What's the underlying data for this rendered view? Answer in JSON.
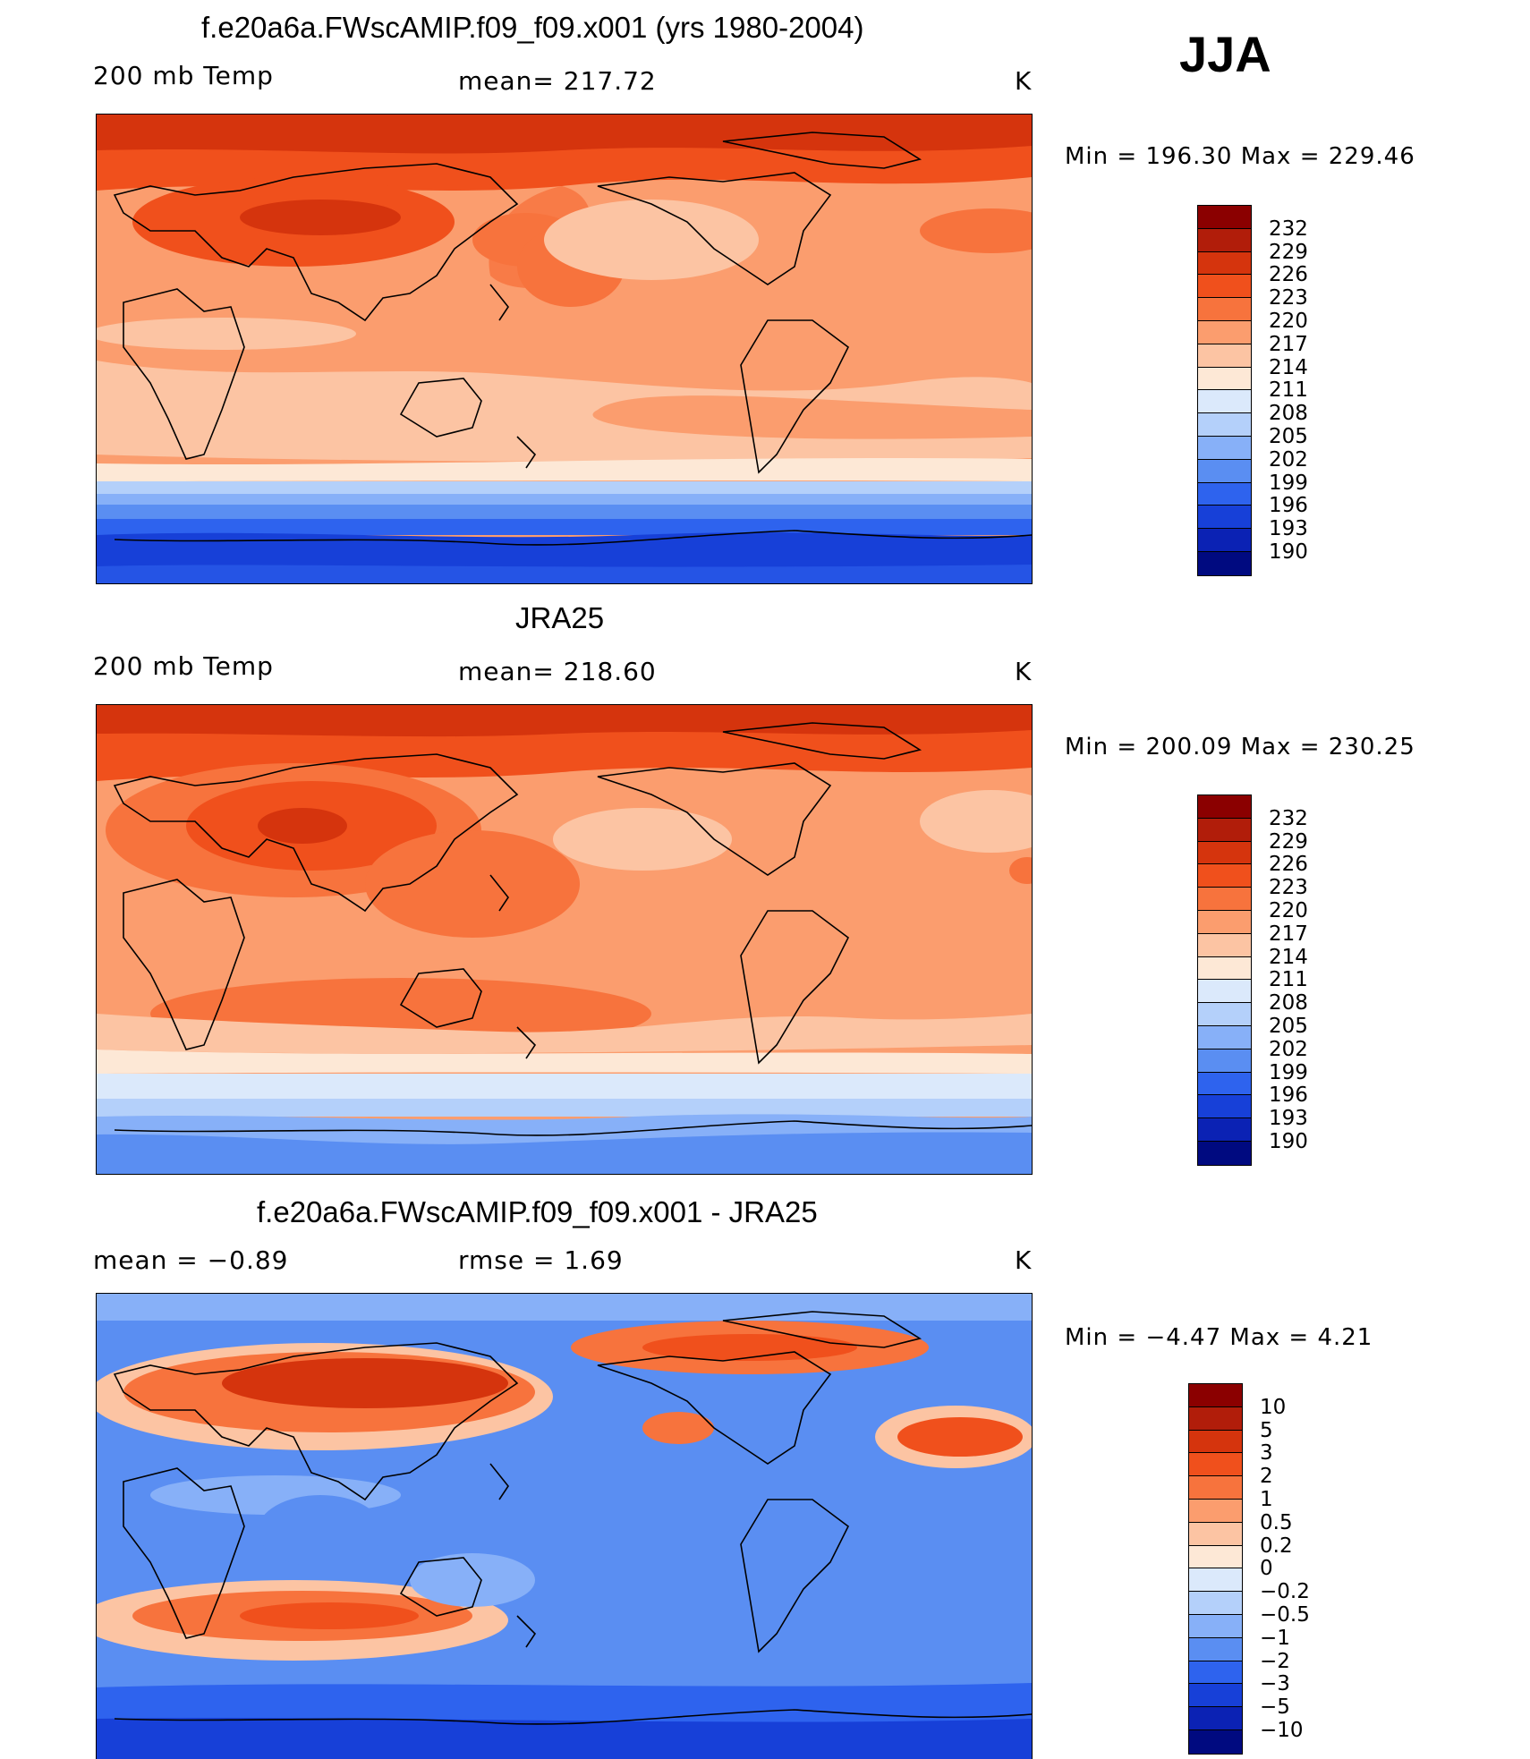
{
  "season": "JJA",
  "panels": [
    {
      "id": "model",
      "title": "f.e20a6a.FWscAMIP.f09_f09.x001 (yrs 1980-2004)",
      "left_label": "200 mb Temp",
      "center_label": "mean= 217.72",
      "unit": "K",
      "minmax": "Min  =  196.30  Max  =  229.46"
    },
    {
      "id": "obs",
      "title": "JRA25",
      "left_label": "200 mb Temp",
      "center_label": "mean= 218.60",
      "unit": "K",
      "minmax": "Min  =  200.09  Max  =  230.25"
    },
    {
      "id": "diff",
      "title": "f.e20a6a.FWscAMIP.f09_f09.x001 - JRA25",
      "left_label": "mean  =    −0.89",
      "center_label": "rmse  =     1.69",
      "unit": "K",
      "minmax": "Min  =   −4.47  Max  =     4.21"
    }
  ],
  "colorbars": {
    "temp": {
      "labels": [
        "232",
        "229",
        "226",
        "223",
        "220",
        "217",
        "214",
        "211",
        "208",
        "205",
        "202",
        "199",
        "196",
        "193",
        "190"
      ],
      "colors": [
        "#8b0000",
        "#b11d0a",
        "#d5340d",
        "#f0501c",
        "#f7733d",
        "#fb9d6e",
        "#fcc4a3",
        "#fde8d6",
        "#dbe9fb",
        "#b4d0fa",
        "#87b0f8",
        "#5a8ef2",
        "#2e63ee",
        "#1740d8",
        "#0b22b4",
        "#000a80"
      ]
    },
    "diff": {
      "labels": [
        "10",
        "5",
        "3",
        "2",
        "1",
        "0.5",
        "0.2",
        "0",
        "−0.2",
        "−0.5",
        "−1",
        "−2",
        "−3",
        "−5",
        "−10"
      ],
      "colors": [
        "#8b0000",
        "#b11d0a",
        "#d5340d",
        "#f0501c",
        "#f7733d",
        "#fb9d6e",
        "#fcc4a3",
        "#fde8d6",
        "#dbe9fb",
        "#b4d0fa",
        "#87b0f8",
        "#5a8ef2",
        "#2e63ee",
        "#1740d8",
        "#0b22b4",
        "#000a80"
      ]
    }
  }
}
